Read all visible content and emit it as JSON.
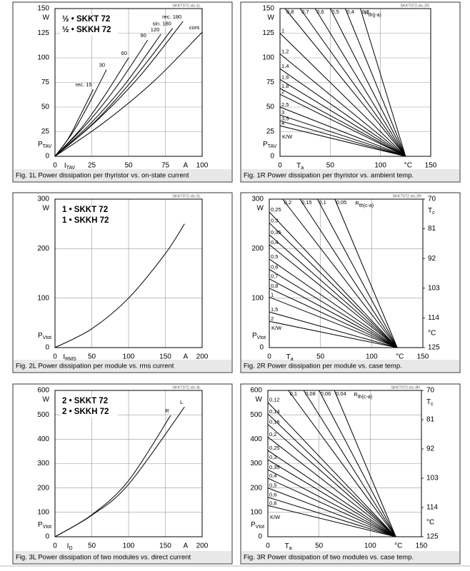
{
  "chart_data": [
    {
      "type": "line",
      "source": "SKKT072.xls-1L",
      "caption": "Fig. 1L Power dissipation per thyristor vs. on-state current",
      "legend_text": [
        "½ • SKKT 72",
        "½ • SKKH 72"
      ],
      "x_label": {
        "text": "I",
        "sub": "TAV"
      },
      "x_unit": "A",
      "y_label": {
        "text": "P",
        "sub": "TAV"
      },
      "y_unit": "W",
      "xlim": [
        0,
        100
      ],
      "ylim": [
        0,
        150
      ],
      "xticks": [
        0,
        25,
        50,
        75,
        100
      ],
      "yticks": [
        0,
        25,
        50,
        75,
        100,
        125,
        150
      ],
      "grid": true,
      "color": "#000000",
      "series_label_position": "end",
      "series": [
        {
          "name": "rec. 15",
          "x": [
            0,
            9,
            17,
            26
          ],
          "values": [
            0,
            18,
            41,
            68
          ]
        },
        {
          "name": "30",
          "x": [
            0,
            12,
            23,
            35
          ],
          "values": [
            0,
            24,
            53,
            88
          ]
        },
        {
          "name": "60",
          "x": [
            0,
            17,
            33,
            50
          ],
          "values": [
            0,
            27,
            60,
            100
          ]
        },
        {
          "name": "90",
          "x": [
            0,
            21,
            42,
            63
          ],
          "values": [
            0,
            32,
            71,
            118
          ]
        },
        {
          "name": "120",
          "x": [
            0,
            24,
            48,
            72
          ],
          "values": [
            0,
            33,
            74,
            124
          ]
        },
        {
          "name": "sin. 180",
          "x": [
            0,
            27,
            53,
            80
          ],
          "values": [
            0,
            35,
            78,
            130
          ]
        },
        {
          "name": "rec. 180",
          "x": [
            0,
            29,
            58,
            87
          ],
          "values": [
            0,
            37,
            82,
            137
          ]
        },
        {
          "name": "cont.",
          "x": [
            0,
            33,
            67,
            100
          ],
          "values": [
            0,
            34,
            76,
            126
          ]
        }
      ]
    },
    {
      "type": "line",
      "source": "SKKT072.xls-1R",
      "caption": "Fig. 1R Power dissipation per thyristor vs. ambient temp.",
      "x_label": {
        "text": "T",
        "sub": "a"
      },
      "x_unit": "°C",
      "y_label": {
        "text": "P",
        "sub": "TAV"
      },
      "y_unit": "W",
      "rth_label": {
        "text": "R",
        "sub": "th(j-a)"
      },
      "kw_label": "K/W",
      "xlim": [
        0,
        150
      ],
      "ylim": [
        0,
        150
      ],
      "xticks": [
        0,
        50,
        100,
        150
      ],
      "yticks": [
        0,
        25,
        50,
        75,
        100,
        125,
        150
      ],
      "grid": true,
      "color": "#000000",
      "series_label_position": "start",
      "series": [
        {
          "name": "0,8",
          "x": [
            5,
            125
          ],
          "values": [
            150,
            0
          ]
        },
        {
          "name": "0,7",
          "x": [
            20,
            125
          ],
          "values": [
            150,
            0
          ]
        },
        {
          "name": "0,6",
          "x": [
            35,
            125
          ],
          "values": [
            150,
            0
          ]
        },
        {
          "name": "0,5",
          "x": [
            50,
            125
          ],
          "values": [
            150,
            0
          ]
        },
        {
          "name": "0,4",
          "x": [
            65,
            125
          ],
          "values": [
            150,
            0
          ]
        },
        {
          "name": "0,3",
          "x": [
            80,
            125
          ],
          "values": [
            150,
            0
          ]
        },
        {
          "name": "1",
          "x": [
            0,
            125
          ],
          "values": [
            125,
            0
          ]
        },
        {
          "name": "1,2",
          "x": [
            0,
            125
          ],
          "values": [
            104,
            0
          ]
        },
        {
          "name": "1,4",
          "x": [
            0,
            125
          ],
          "values": [
            89,
            0
          ]
        },
        {
          "name": "1,6",
          "x": [
            0,
            125
          ],
          "values": [
            78,
            0
          ]
        },
        {
          "name": "1,8",
          "x": [
            0,
            125
          ],
          "values": [
            69,
            0
          ]
        },
        {
          "name": "2",
          "x": [
            0,
            125
          ],
          "values": [
            63,
            0
          ]
        },
        {
          "name": "2,5",
          "x": [
            0,
            125
          ],
          "values": [
            50,
            0
          ]
        },
        {
          "name": "3",
          "x": [
            0,
            125
          ],
          "values": [
            42,
            0
          ]
        },
        {
          "name": "3,5",
          "x": [
            0,
            125
          ],
          "values": [
            36,
            0
          ]
        },
        {
          "name": "4",
          "x": [
            0,
            125
          ],
          "values": [
            31,
            0
          ]
        }
      ]
    },
    {
      "type": "line",
      "source": "SKKT072.xls-2L",
      "caption": "Fig. 2L Power dissipation per module vs. rms current",
      "legend_text": [
        "1 • SKKT 72",
        "1 • SKKH 72"
      ],
      "x_label": {
        "text": "I",
        "sub": "RMS"
      },
      "x_unit": "A",
      "y_label": {
        "text": "P",
        "sub": "Vtot"
      },
      "y_unit": "W",
      "xlim": [
        0,
        200
      ],
      "ylim": [
        0,
        300
      ],
      "xticks": [
        0,
        50,
        100,
        150,
        200
      ],
      "yticks": [
        0,
        100,
        200,
        300
      ],
      "grid": true,
      "color": "#000000",
      "series_label_position": "end",
      "series": [
        {
          "x": [
            0,
            50,
            100,
            150,
            176
          ],
          "values": [
            0,
            38,
            100,
            190,
            250
          ]
        }
      ]
    },
    {
      "type": "line",
      "source": "SKKT072.xls-2R",
      "caption": "Fig. 2R Power dissipation per module vs. case temp.",
      "x_label": {
        "text": "T",
        "sub": "a"
      },
      "x_unit": "°C",
      "y_label": {
        "text": "P",
        "sub": "Vtot"
      },
      "y_unit": "W",
      "y2_label": {
        "text": "T",
        "sub": "c"
      },
      "y2_unit": "°C",
      "rth_label": {
        "text": "R",
        "sub": "th(c-a)"
      },
      "kw_label": "K/W",
      "xlim": [
        0,
        150
      ],
      "ylim": [
        0,
        300
      ],
      "xticks": [
        0,
        50,
        100,
        150
      ],
      "yticks": [
        0,
        100,
        200,
        300
      ],
      "y2lim": [
        125,
        70
      ],
      "y2ticks": [
        70,
        81,
        92,
        103,
        114,
        125
      ],
      "grid": true,
      "color": "#000000",
      "series_label_position": "start",
      "series": [
        {
          "name": "0,2",
          "x": [
            13,
            125
          ],
          "values": [
            300,
            0
          ]
        },
        {
          "name": "0,15",
          "x": [
            30,
            125
          ],
          "values": [
            300,
            0
          ]
        },
        {
          "name": "0,1",
          "x": [
            47,
            125
          ],
          "values": [
            300,
            0
          ]
        },
        {
          "name": "0,05",
          "x": [
            64,
            125
          ],
          "values": [
            300,
            0
          ]
        },
        {
          "name": "0,25",
          "x": [
            0,
            125
          ],
          "values": [
            274,
            0
          ]
        },
        {
          "name": "0,3",
          "x": [
            0,
            125
          ],
          "values": [
            252,
            0
          ]
        },
        {
          "name": "0,35",
          "x": [
            0,
            125
          ],
          "values": [
            228,
            0
          ]
        },
        {
          "name": "0,4",
          "x": [
            0,
            125
          ],
          "values": [
            208,
            0
          ]
        },
        {
          "name": "0,5",
          "x": [
            0,
            125
          ],
          "values": [
            179,
            0
          ]
        },
        {
          "name": "0,6",
          "x": [
            0,
            125
          ],
          "values": [
            158,
            0
          ]
        },
        {
          "name": "0,7",
          "x": [
            0,
            125
          ],
          "values": [
            139,
            0
          ]
        },
        {
          "name": "0,8",
          "x": [
            0,
            125
          ],
          "values": [
            120,
            0
          ]
        },
        {
          "name": "1",
          "x": [
            0,
            125
          ],
          "values": [
            102,
            0
          ]
        },
        {
          "name": "1,5",
          "x": [
            0,
            125
          ],
          "values": [
            72,
            0
          ]
        },
        {
          "name": "2",
          "x": [
            0,
            125
          ],
          "values": [
            53,
            0
          ]
        }
      ]
    },
    {
      "type": "line",
      "source": "SKKT072.xls-3L",
      "caption": "Fig. 3L Power dissipation of two modules vs. direct current",
      "legend_text": [
        "2 • SKKT 72",
        "2 • SKKH 72"
      ],
      "x_label": {
        "text": "I",
        "sub": "D"
      },
      "x_unit": "A",
      "y_label": {
        "text": "P",
        "sub": "Vtot"
      },
      "y_unit": "W",
      "xlim": [
        0,
        200
      ],
      "ylim": [
        0,
        600
      ],
      "xticks": [
        0,
        50,
        100,
        150,
        200
      ],
      "yticks": [
        0,
        100,
        200,
        300,
        400,
        500,
        600
      ],
      "grid": true,
      "color": "#000000",
      "series_label_position": "end",
      "series": [
        {
          "name": "R",
          "x": [
            0,
            50,
            100,
            157
          ],
          "values": [
            0,
            90,
            230,
            497
          ]
        },
        {
          "name": "L",
          "x": [
            0,
            50,
            100,
            176
          ],
          "values": [
            0,
            88,
            215,
            532
          ]
        }
      ]
    },
    {
      "type": "line",
      "source": "SKKT072.xls-3R",
      "caption": "Fig. 3R Power dissipation of two modules vs. case temp.",
      "x_label": {
        "text": "T",
        "sub": "a"
      },
      "x_unit": "°C",
      "y_label": {
        "text": "P",
        "sub": "Vtot"
      },
      "y_unit": "W",
      "y2_label": {
        "text": "T",
        "sub": "c"
      },
      "y2_unit": "°C",
      "rth_label": {
        "text": "R",
        "sub": "th(c-a)"
      },
      "kw_label": "K/W",
      "xlim": [
        0,
        150
      ],
      "ylim": [
        0,
        600
      ],
      "xticks": [
        0,
        50,
        100,
        150
      ],
      "yticks": [
        0,
        100,
        200,
        300,
        400,
        500,
        600
      ],
      "y2lim": [
        125,
        70
      ],
      "y2ticks": [
        70,
        81,
        92,
        103,
        114,
        125
      ],
      "grid": true,
      "color": "#000000",
      "series_label_position": "start",
      "series": [
        {
          "name": "0,1",
          "x": [
            20,
            125
          ],
          "values": [
            600,
            0
          ]
        },
        {
          "name": "0,08",
          "x": [
            35,
            125
          ],
          "values": [
            600,
            0
          ]
        },
        {
          "name": "0,06",
          "x": [
            50,
            125
          ],
          "values": [
            600,
            0
          ]
        },
        {
          "name": "0,04",
          "x": [
            65,
            125
          ],
          "values": [
            600,
            0
          ]
        },
        {
          "name": "0,12",
          "x": [
            0,
            125
          ],
          "values": [
            551,
            0
          ]
        },
        {
          "name": "0,14",
          "x": [
            0,
            125
          ],
          "values": [
            504,
            0
          ]
        },
        {
          "name": "0,16",
          "x": [
            0,
            125
          ],
          "values": [
            461,
            0
          ]
        },
        {
          "name": "0,2",
          "x": [
            0,
            125
          ],
          "values": [
            409,
            0
          ]
        },
        {
          "name": "0,25",
          "x": [
            0,
            125
          ],
          "values": [
            354,
            0
          ]
        },
        {
          "name": "0,3",
          "x": [
            0,
            125
          ],
          "values": [
            316,
            0
          ]
        },
        {
          "name": "0,35",
          "x": [
            0,
            125
          ],
          "values": [
            275,
            0
          ]
        },
        {
          "name": "0,4",
          "x": [
            0,
            125
          ],
          "values": [
            240,
            0
          ]
        },
        {
          "name": "0,5",
          "x": [
            0,
            125
          ],
          "values": [
            200,
            0
          ]
        },
        {
          "name": "0,6",
          "x": [
            0,
            125
          ],
          "values": [
            162,
            0
          ]
        },
        {
          "name": "0,8",
          "x": [
            0,
            125
          ],
          "values": [
            128,
            0
          ]
        }
      ]
    }
  ]
}
